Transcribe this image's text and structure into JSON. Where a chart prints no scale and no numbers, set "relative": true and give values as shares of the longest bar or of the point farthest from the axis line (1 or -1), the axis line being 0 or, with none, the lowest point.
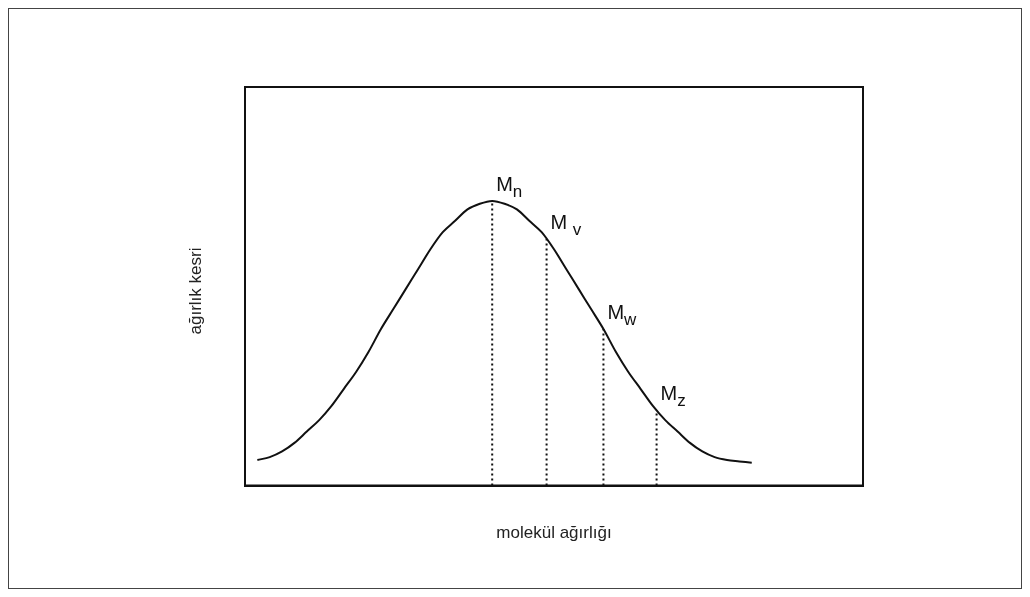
{
  "chart_data": {
    "type": "line",
    "relative": true,
    "xlabel": "molekül ağırlığı",
    "ylabel": "ağırlık kesri",
    "categories": [
      null,
      null,
      null,
      null,
      null,
      null,
      null,
      null,
      null,
      null,
      null,
      null,
      null,
      null,
      null,
      null,
      null,
      null,
      null,
      null,
      null,
      null,
      null,
      null,
      null,
      null,
      null,
      null,
      null,
      null,
      null,
      null,
      null,
      null,
      null,
      null,
      null,
      null,
      null,
      null,
      null,
      null,
      null,
      null,
      null,
      null,
      null,
      null,
      null,
      null,
      null
    ],
    "series": [
      {
        "color": "#111111",
        "values": [
          null,
          0.09,
          0.1,
          0.12,
          0.15,
          0.19,
          0.23,
          0.28,
          0.34,
          0.4,
          0.47,
          0.55,
          0.62,
          0.69,
          0.76,
          0.83,
          0.89,
          0.93,
          0.97,
          0.99,
          1,
          0.99,
          0.97,
          0.93,
          0.89,
          0.83,
          0.76,
          0.69,
          0.62,
          0.55,
          0.47,
          0.4,
          0.34,
          0.28,
          0.23,
          0.19,
          0.15,
          0.12,
          0.1,
          0.09,
          0.085,
          0.08,
          null,
          null,
          null,
          null,
          null,
          null,
          null,
          null,
          null
        ]
      }
    ],
    "marker": "none",
    "line_style": "solid",
    "grid": false,
    "legend": false,
    "tick_labels": false,
    "annotations": [
      "M$_{n}$",
      "M $_{v}$",
      "M$_{w}$",
      "M$_{z}$"
    ]
  }
}
